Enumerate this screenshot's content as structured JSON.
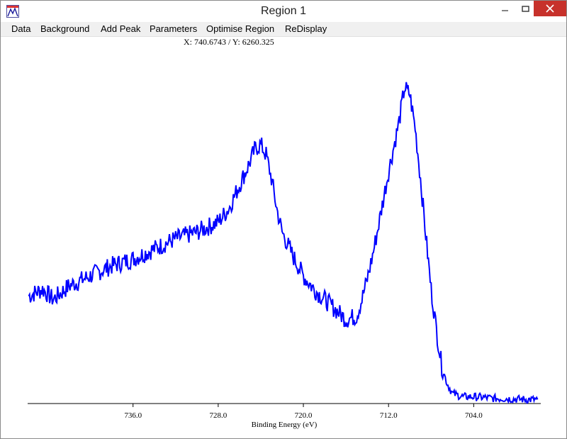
{
  "window": {
    "title": "Region 1",
    "controls": {
      "minimize": "minimize",
      "maximize": "maximize",
      "close": "close"
    }
  },
  "menu": {
    "items": [
      "Data",
      "Background",
      "Add Peak",
      "Parameters",
      "Optimise Region",
      "ReDisplay"
    ]
  },
  "status": {
    "coord_readout": "X: 740.6743 / Y: 6260.325"
  },
  "colors": {
    "trace": "#0000ff",
    "close_button": "#c7312b"
  },
  "chart_data": {
    "type": "line",
    "xlabel": "Binding Energy (eV)",
    "x_reversed": true,
    "xlim": [
      745.9,
      697.7
    ],
    "x_ticks": [
      736.0,
      728.0,
      720.0,
      712.0,
      704.0
    ],
    "x_tick_labels": [
      "736.0",
      "728.0",
      "720.0",
      "712.0",
      "704.0"
    ],
    "y_axis_visible": false,
    "grid": false,
    "series": [
      {
        "color": "#0000ff",
        "x": [
          745.8,
          744.5,
          743.5,
          742.0,
          740.0,
          738.0,
          736.0,
          734.0,
          732.0,
          730.0,
          728.0,
          727.0,
          726.0,
          725.0,
          724.5,
          724.0,
          723.5,
          723.0,
          722.5,
          722.0,
          721.0,
          720.0,
          719.0,
          718.0,
          717.0,
          716.0,
          715.0,
          714.5,
          714.0,
          713.5,
          713.0,
          712.0,
          711.0,
          710.5,
          710.0,
          709.5,
          709.0,
          708.5,
          708.0,
          707.5,
          707.0,
          706.5,
          706.0,
          705.5,
          705.0,
          704.0,
          703.0,
          702.0,
          701.0,
          700.0,
          699.0,
          698.0
        ],
        "y": [
          0.32,
          0.34,
          0.31,
          0.35,
          0.38,
          0.41,
          0.43,
          0.46,
          0.49,
          0.51,
          0.54,
          0.58,
          0.65,
          0.72,
          0.76,
          0.77,
          0.74,
          0.67,
          0.58,
          0.51,
          0.44,
          0.38,
          0.34,
          0.31,
          0.28,
          0.25,
          0.26,
          0.31,
          0.37,
          0.44,
          0.52,
          0.69,
          0.84,
          0.94,
          0.92,
          0.82,
          0.67,
          0.5,
          0.34,
          0.22,
          0.11,
          0.06,
          0.03,
          0.025,
          0.02,
          0.02,
          0.018,
          0.015,
          0.015,
          0.013,
          0.012,
          0.012
        ]
      }
    ]
  }
}
